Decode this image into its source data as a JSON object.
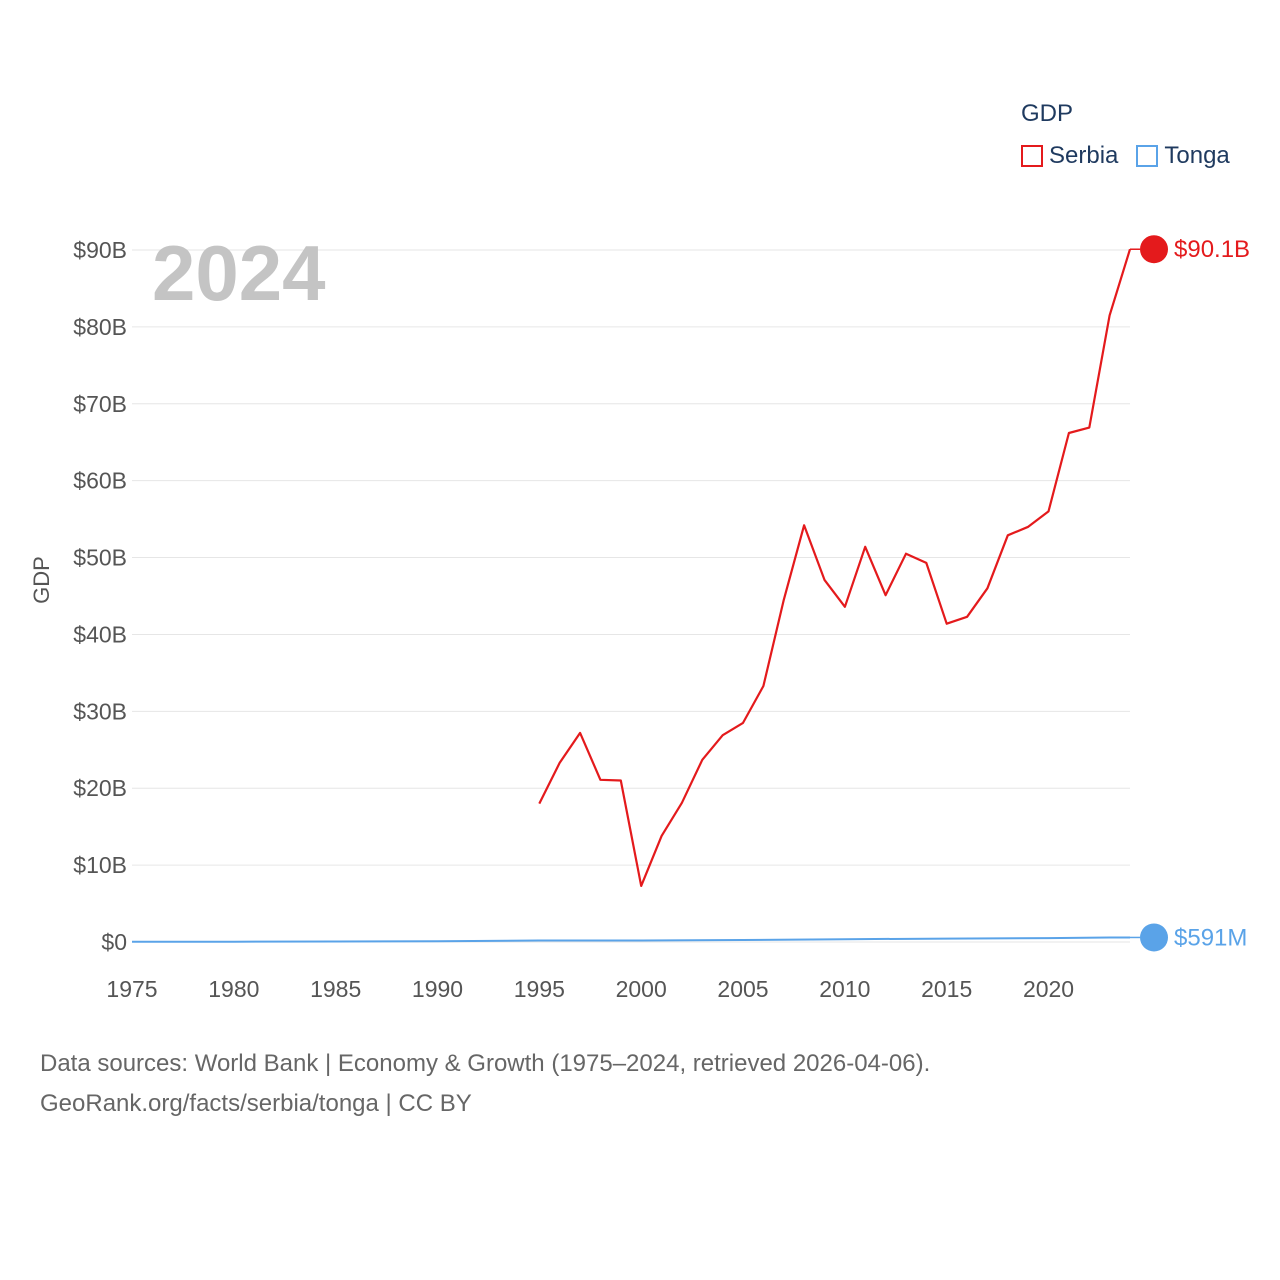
{
  "chart_data": {
    "type": "line",
    "title": "",
    "legend_title": "GDP",
    "legend_position": "top-right",
    "year_overlay": "2024",
    "xlabel": "",
    "ylabel": "GDP",
    "xlim": [
      1975,
      2024
    ],
    "ylim": [
      0,
      90
    ],
    "x_ticks": [
      1975,
      1980,
      1985,
      1990,
      1995,
      2000,
      2005,
      2010,
      2015,
      2020
    ],
    "y_ticks": [
      0,
      10,
      20,
      30,
      40,
      50,
      60,
      70,
      80,
      90
    ],
    "y_tick_labels": [
      "$0",
      "$10B",
      "$20B",
      "$30B",
      "$40B",
      "$50B",
      "$60B",
      "$70B",
      "$80B",
      "$90B"
    ],
    "grid": true,
    "series": [
      {
        "name": "Serbia",
        "color": "#e41a1c",
        "end_label": "$90.1B",
        "x": [
          1995,
          1996,
          1997,
          1998,
          1999,
          2000,
          2001,
          2002,
          2003,
          2004,
          2005,
          2006,
          2007,
          2008,
          2009,
          2010,
          2011,
          2012,
          2013,
          2014,
          2015,
          2016,
          2017,
          2018,
          2019,
          2020,
          2021,
          2022,
          2023,
          2024
        ],
        "values": [
          18.0,
          23.3,
          27.2,
          21.1,
          21.0,
          7.3,
          13.8,
          18.1,
          23.7,
          26.9,
          28.5,
          33.3,
          44.5,
          54.2,
          47.1,
          43.6,
          51.4,
          45.1,
          50.5,
          49.3,
          41.4,
          42.3,
          46.0,
          52.9,
          54.0,
          56.0,
          66.2,
          66.9,
          81.5,
          90.1
        ]
      },
      {
        "name": "Tonga",
        "color": "#5aa3e8",
        "end_label": "$591M",
        "x": [
          1975,
          1980,
          1985,
          1990,
          1995,
          2000,
          2005,
          2010,
          2015,
          2020,
          2023,
          2024
        ],
        "values": [
          0.02,
          0.04,
          0.06,
          0.11,
          0.2,
          0.2,
          0.26,
          0.37,
          0.44,
          0.51,
          0.59,
          0.591
        ]
      }
    ],
    "footer_line1": "Data sources: World Bank | Economy & Growth (1975–2024, retrieved 2026-04-06).",
    "footer_line2": "GeoRank.org/facts/serbia/tonga | CC BY"
  }
}
